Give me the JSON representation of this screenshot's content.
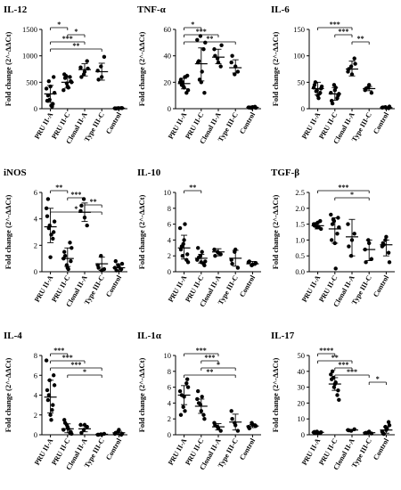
{
  "chart_data": [
    {
      "type": "scatter",
      "title": "IL-12",
      "ylabel": "Fold change (2^-ΔΔCt)",
      "ylim": [
        0,
        1500
      ],
      "yticks": [
        0,
        500,
        1000,
        1500
      ],
      "categories": [
        "PRU II-A",
        "PRU II-C",
        "Clonal II-A",
        "Type III-C",
        "Control"
      ],
      "points": [
        [
          380,
          170,
          90,
          150,
          420,
          600,
          250,
          60,
          300,
          520,
          40
        ],
        [
          350,
          480,
          600,
          650,
          420,
          520,
          580,
          400,
          500,
          620
        ],
        [
          780,
          650,
          900,
          600,
          700,
          760
        ],
        [
          720,
          800,
          980,
          550,
          600
        ],
        [
          8,
          10,
          12,
          5,
          9,
          11,
          6
        ]
      ],
      "mean": [
        280,
        500,
        740,
        700,
        10
      ],
      "err_hi": [
        440,
        620,
        850,
        860,
        15
      ],
      "err_lo": [
        120,
        390,
        620,
        540,
        5
      ],
      "significance": [
        {
          "from": 0,
          "to": 1,
          "label": "*"
        },
        {
          "from": 1,
          "to": 2,
          "label": "*"
        },
        {
          "from": 0,
          "to": 2,
          "label": "***"
        },
        {
          "from": 0,
          "to": 3,
          "label": "**"
        }
      ]
    },
    {
      "type": "scatter",
      "title": "TNF-α",
      "ylabel": "Fold change (2^-ΔΔCt)",
      "ylim": [
        0,
        60
      ],
      "yticks": [
        0,
        20,
        40,
        60
      ],
      "categories": [
        "PRU II-A",
        "PRU II-C",
        "Clonal II-A",
        "Type III-C",
        "Control"
      ],
      "points": [
        [
          20,
          17,
          12,
          22,
          16,
          25,
          18,
          24,
          14,
          20
        ],
        [
          52,
          55,
          45,
          35,
          20,
          12,
          36,
          28,
          50,
          22
        ],
        [
          45,
          38,
          32,
          40,
          35,
          48
        ],
        [
          35,
          26,
          28,
          40,
          32
        ],
        [
          1,
          0.5,
          1.5,
          0.8,
          1.2,
          0.6,
          0.9
        ]
      ],
      "mean": [
        19,
        34,
        39,
        31,
        1
      ],
      "err_hi": [
        23,
        46,
        45,
        37,
        1.5
      ],
      "err_lo": [
        15,
        21,
        34,
        27,
        0.5
      ],
      "significance": [
        {
          "from": 0,
          "to": 1,
          "label": "*"
        },
        {
          "from": 0,
          "to": 2,
          "label": "***"
        },
        {
          "from": 0,
          "to": 3,
          "label": "**"
        }
      ]
    },
    {
      "type": "scatter",
      "title": "IL-6",
      "ylabel": "Fold change (2^-ΔΔCt)",
      "ylim": [
        0,
        150
      ],
      "yticks": [
        0,
        50,
        100,
        150
      ],
      "categories": [
        "PRU II-A",
        "PRU II-C",
        "Clonal II-A",
        "Type III-C",
        "Control"
      ],
      "points": [
        [
          40,
          35,
          30,
          45,
          25,
          38,
          50,
          20,
          42,
          33
        ],
        [
          30,
          45,
          20,
          15,
          35,
          25,
          10,
          40,
          28
        ],
        [
          70,
          80,
          95,
          75,
          65,
          85
        ],
        [
          35,
          40,
          30,
          38,
          45
        ],
        [
          2,
          3,
          1,
          2.5,
          1.5,
          4
        ]
      ],
      "mean": [
        38,
        28,
        75,
        38,
        2
      ],
      "err_hi": [
        50,
        40,
        90,
        42,
        3
      ],
      "err_lo": [
        26,
        16,
        62,
        34,
        1
      ],
      "significance": [
        {
          "from": 0,
          "to": 2,
          "label": "***"
        },
        {
          "from": 1,
          "to": 2,
          "label": "***"
        },
        {
          "from": 2,
          "to": 3,
          "label": "**"
        }
      ]
    },
    {
      "type": "scatter",
      "title": "iNOS",
      "ylabel": "Fold change (2^-ΔΔCt)",
      "ylim": [
        0,
        6
      ],
      "yticks": [
        0,
        2,
        4,
        6
      ],
      "categories": [
        "PRU II-A",
        "PRU II-C",
        "Clonal II-A",
        "Type III-C",
        "Control"
      ],
      "points": [
        [
          4.8,
          3.5,
          2.5,
          4.2,
          1.1,
          3.0,
          5.5,
          2.8,
          3.8,
          3.3
        ],
        [
          1.0,
          0.5,
          2.2,
          1.5,
          0.3,
          0.8,
          1.2,
          0.2,
          1.8
        ],
        [
          4.6,
          5.5,
          3.5,
          5.0,
          4.1
        ],
        [
          0.5,
          1.2,
          0.2,
          0.3,
          0.1
        ],
        [
          0.3,
          0.5,
          0.2,
          0.8,
          0.4,
          0.6,
          0.1
        ]
      ],
      "mean": [
        3.4,
        1.0,
        4.5,
        0.6,
        0.3
      ],
      "err_hi": [
        4.8,
        1.8,
        5.2,
        1.1,
        0.6
      ],
      "err_lo": [
        2.2,
        0.4,
        3.8,
        0.1,
        0.05
      ],
      "significance": [
        {
          "from": 0,
          "to": 1,
          "label": "**"
        },
        {
          "from": 1,
          "to": 2,
          "label": "***"
        },
        {
          "from": 2,
          "to": 3,
          "label": "**"
        },
        {
          "from": 0,
          "to": 3,
          "label": "*"
        }
      ]
    },
    {
      "type": "scatter",
      "title": "IL-10",
      "ylabel": "Fold change (2^-ΔΔCt)",
      "ylim": [
        0,
        10
      ],
      "yticks": [
        0,
        2,
        4,
        6,
        8,
        10
      ],
      "categories": [
        "PRU II-A",
        "PRU II-C",
        "Clonal II-A",
        "Type III-C",
        "Control"
      ],
      "points": [
        [
          5.5,
          3.5,
          1.5,
          2.8,
          4.0,
          2.2,
          3.2,
          6.0,
          1.2,
          2.0
        ],
        [
          1.5,
          2.0,
          1.0,
          3.0,
          1.2,
          0.8,
          1.8,
          2.5,
          1.3
        ],
        [
          2.8,
          2.5,
          2.2,
          2.0,
          2.4
        ],
        [
          1.5,
          2.5,
          0.5,
          1.0,
          2.8
        ],
        [
          1.2,
          0.8,
          1.0,
          1.3,
          0.9,
          1.1
        ]
      ],
      "mean": [
        3.0,
        1.7,
        2.5,
        1.7,
        1.0
      ],
      "err_hi": [
        4.6,
        2.2,
        2.9,
        2.7,
        1.3
      ],
      "err_lo": [
        1.6,
        1.1,
        2.0,
        0.7,
        0.8
      ],
      "significance": [
        {
          "from": 0,
          "to": 1,
          "label": "**"
        }
      ]
    },
    {
      "type": "scatter",
      "title": "TGF-β",
      "ylabel": "Fold change (2^-ΔΔCt)",
      "ylim": [
        0,
        2.5
      ],
      "yticks": [
        0.0,
        0.5,
        1.0,
        1.5,
        2.0,
        2.5
      ],
      "categories": [
        "PRU II-A",
        "PRU II-C",
        "Clonal II-A",
        "Type III-C",
        "Control"
      ],
      "points": [
        [
          1.5,
          1.4,
          1.6,
          1.45,
          1.55,
          1.35,
          1.5,
          1.42
        ],
        [
          1.8,
          1.6,
          1.2,
          1.0,
          0.9,
          1.7,
          1.5,
          0.1,
          1.4,
          1.65
        ],
        [
          1.5,
          0.5,
          1.2,
          0.8,
          1.0
        ],
        [
          0.7,
          1.0,
          0.4,
          0.3,
          0.9
        ],
        [
          0.8,
          1.0,
          0.6,
          0.9,
          1.1,
          0.3,
          0.85
        ]
      ],
      "mean": [
        1.45,
        1.35,
        1.1,
        0.7,
        0.85
      ],
      "err_hi": [
        1.55,
        1.7,
        1.65,
        1.0,
        1.0
      ],
      "err_lo": [
        1.35,
        0.9,
        0.5,
        0.35,
        0.5
      ],
      "significance": [
        {
          "from": 0,
          "to": 3,
          "label": "***"
        },
        {
          "from": 1,
          "to": 3,
          "label": "*"
        }
      ]
    },
    {
      "type": "scatter",
      "title": "IL-4",
      "ylabel": "Fold change (2^-ΔΔCt)",
      "ylim": [
        0,
        8
      ],
      "yticks": [
        0,
        2,
        4,
        6,
        8
      ],
      "categories": [
        "PRU II-A",
        "PRU II-C",
        "Clonal II-A",
        "Type III-C",
        "Control"
      ],
      "points": [
        [
          7.5,
          5.5,
          3.0,
          4.5,
          2.0,
          6.0,
          3.5,
          1.5,
          5.0,
          4.0,
          2.5
        ],
        [
          0.5,
          1.0,
          0.2,
          1.5,
          0.8,
          0.3,
          1.2,
          0.6,
          0.1
        ],
        [
          1.0,
          0.5,
          0.8,
          0.2,
          1.0
        ],
        [
          0.0,
          0.05,
          0.1,
          0.0,
          0.02
        ],
        [
          0.1,
          0.3,
          0.0,
          0.2,
          0.5,
          0.1
        ]
      ],
      "mean": [
        3.8,
        0.6,
        0.6,
        0.05,
        0.2
      ],
      "err_hi": [
        5.5,
        1.1,
        0.9,
        0.1,
        0.35
      ],
      "err_lo": [
        2.2,
        0.2,
        0.3,
        0.0,
        0.05
      ],
      "significance": [
        {
          "from": 0,
          "to": 1,
          "label": "***"
        },
        {
          "from": 0,
          "to": 2,
          "label": "***"
        },
        {
          "from": 0,
          "to": 3,
          "label": "***"
        },
        {
          "from": 1,
          "to": 3,
          "label": "*"
        }
      ]
    },
    {
      "type": "scatter",
      "title": "IL-1α",
      "ylabel": "Fold change (2^-ΔΔCt)",
      "ylim": [
        0,
        10
      ],
      "yticks": [
        0,
        2,
        4,
        6,
        8,
        10
      ],
      "categories": [
        "PRU II-A",
        "PRU II-C",
        "Clonal II-A",
        "Type III-C",
        "Control"
      ],
      "points": [
        [
          5.5,
          3.5,
          6.5,
          2.5,
          4.8,
          7.0,
          5.0,
          3.0,
          6.0
        ],
        [
          4.5,
          3.8,
          2.5,
          5.5,
          3.0,
          2.0,
          4.0,
          4.8
        ],
        [
          1.5,
          1.0,
          0.5,
          1.2,
          0.8
        ],
        [
          3.0,
          1.5,
          0.5,
          2.0,
          1.2
        ],
        [
          1.0,
          1.5,
          1.2,
          0.8,
          1.3,
          1.1
        ]
      ],
      "mean": [
        5.0,
        3.6,
        1.0,
        1.6,
        1.1
      ],
      "err_hi": [
        6.2,
        4.5,
        1.4,
        2.6,
        1.3
      ],
      "err_lo": [
        3.8,
        2.7,
        0.6,
        0.6,
        0.9
      ],
      "significance": [
        {
          "from": 0,
          "to": 2,
          "label": "***"
        },
        {
          "from": 1,
          "to": 2,
          "label": "***"
        },
        {
          "from": 1,
          "to": 3,
          "label": "*"
        },
        {
          "from": 0,
          "to": 3,
          "label": "**"
        }
      ]
    },
    {
      "type": "scatter",
      "title": "IL-17",
      "ylabel": "Fold change (2^-ΔΔCt)",
      "ylim": [
        0,
        50
      ],
      "yticks": [
        0,
        10,
        20,
        30,
        40,
        50
      ],
      "categories": [
        "PRU II-A",
        "PRU II-C",
        "Clonal II-A",
        "Type III-C",
        "Control"
      ],
      "points": [
        [
          1.5,
          2.0,
          1.0,
          1.8,
          1.2,
          1.6,
          1.4
        ],
        [
          38,
          30,
          25,
          35,
          32,
          28,
          40,
          33,
          22,
          36
        ],
        [
          3.0,
          2.5,
          3.5,
          2.8
        ],
        [
          1.0,
          1.5,
          0.8,
          1.2,
          2.0
        ],
        [
          2,
          5,
          8,
          1,
          3,
          6,
          0.5,
          4
        ]
      ],
      "mean": [
        1.5,
        32,
        3.0,
        1.3,
        3.0
      ],
      "err_hi": [
        1.9,
        36,
        3.4,
        1.6,
        5.0
      ],
      "err_lo": [
        1.1,
        28,
        2.6,
        1.0,
        1.0
      ],
      "significance": [
        {
          "from": 0,
          "to": 1,
          "label": "****"
        },
        {
          "from": 0,
          "to": 2,
          "label": "**"
        },
        {
          "from": 1,
          "to": 2,
          "label": "***"
        },
        {
          "from": 1,
          "to": 3,
          "label": "***"
        },
        {
          "from": 3,
          "to": 4,
          "label": "*"
        }
      ]
    }
  ]
}
